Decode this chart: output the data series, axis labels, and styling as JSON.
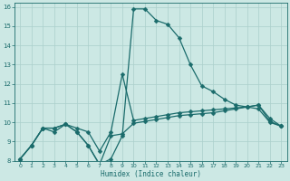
{
  "xlabel": "Humidex (Indice chaleur)",
  "xlim": [
    -0.5,
    23.5
  ],
  "ylim": [
    8,
    16.2
  ],
  "xticks": [
    0,
    1,
    2,
    3,
    4,
    5,
    6,
    7,
    8,
    9,
    10,
    11,
    12,
    13,
    14,
    15,
    16,
    17,
    18,
    19,
    20,
    21,
    22,
    23
  ],
  "yticks": [
    8,
    9,
    10,
    11,
    12,
    13,
    14,
    15,
    16
  ],
  "bg_color": "#cce8e4",
  "line_color": "#1a6b6b",
  "grid_color": "#aacfcb",
  "series": [
    {
      "x": [
        0,
        1,
        2,
        3,
        4,
        5,
        6,
        7,
        8,
        9,
        10,
        11,
        12,
        13,
        14,
        15,
        16,
        17,
        18,
        19,
        20,
        21,
        22,
        23
      ],
      "y": [
        8.1,
        8.8,
        9.7,
        9.7,
        9.9,
        9.5,
        8.8,
        7.8,
        8.1,
        9.3,
        15.9,
        15.9,
        15.3,
        15.1,
        14.4,
        13.0,
        11.9,
        11.6,
        11.2,
        10.9,
        10.8,
        10.7,
        10.0,
        9.8
      ]
    },
    {
      "x": [
        0,
        1,
        2,
        3,
        4,
        5,
        6,
        7,
        8,
        9,
        10,
        11,
        12,
        13,
        14,
        15,
        16,
        17,
        18,
        19,
        20,
        21,
        22,
        23
      ],
      "y": [
        8.1,
        8.8,
        9.7,
        9.7,
        9.9,
        9.7,
        9.5,
        8.5,
        9.5,
        12.5,
        10.1,
        10.2,
        10.3,
        10.4,
        10.5,
        10.55,
        10.6,
        10.65,
        10.7,
        10.75,
        10.8,
        10.9,
        10.2,
        9.8
      ]
    },
    {
      "x": [
        0,
        1,
        2,
        3,
        4,
        5,
        6,
        7,
        8,
        9,
        10,
        11,
        12,
        13,
        14,
        15,
        16,
        17,
        18,
        19,
        20,
        21,
        22,
        23
      ],
      "y": [
        8.1,
        8.8,
        9.7,
        9.5,
        9.9,
        9.5,
        8.8,
        7.8,
        9.3,
        9.4,
        9.95,
        10.05,
        10.15,
        10.25,
        10.35,
        10.4,
        10.45,
        10.5,
        10.6,
        10.7,
        10.8,
        10.9,
        10.05,
        9.8
      ]
    }
  ],
  "markersize": 2.5,
  "linewidth": 0.9
}
